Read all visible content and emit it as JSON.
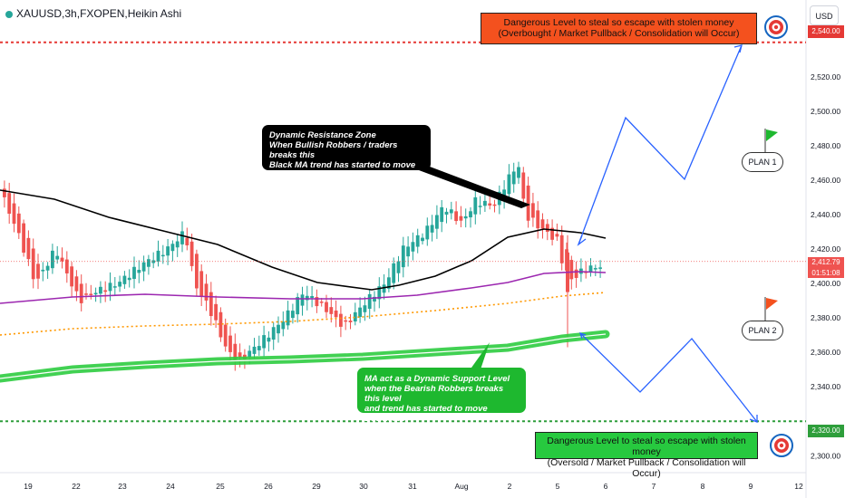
{
  "header": {
    "symbol": "XAUUSD",
    "timeframe": "3h",
    "exchange": "FXOPEN",
    "chart_style": "Heikin Ashi",
    "currency_button": "USD"
  },
  "annotations": {
    "top_box_line1": "Dangerous Level to steal so escape with stolen money",
    "top_box_line2": "(Overbought / Market Pullback / Consolidation will Occur)",
    "bottom_box_line1": "Dangerous Level to steal so escape with stolen money",
    "bottom_box_line2": "(Oversold / Market Pullback / Consolidation will Occur)",
    "resistance_line1": "Dynamic Resistance Zone",
    "resistance_line2": "When Bullish Robbers / traders breaks this",
    "resistance_line3": "Black MA trend has started to move Upside",
    "support_line1": "MA act as a Dynamic Support Level",
    "support_line2": "when the Bearish Robbers breaks this level",
    "support_line3": "and trend has started to move Downside",
    "plan1": "PLAN 1",
    "plan2": "PLAN 2"
  },
  "price_axis": {
    "levels": [
      "2,520.00",
      "2,500.00",
      "2,480.00",
      "2,460.00",
      "2,440.00",
      "2,420.00",
      "2,400.00",
      "2,380.00",
      "2,360.00",
      "2,340.00",
      "2,300.00"
    ],
    "label_top": "2,540.00",
    "label_bottom": "2,320.00",
    "label_current": "2,412.79",
    "label_countdown": "01:51:08"
  },
  "time_axis": [
    "19",
    "22",
    "23",
    "24",
    "25",
    "26",
    "29",
    "30",
    "31",
    "Aug",
    "2",
    "5",
    "6",
    "7",
    "8",
    "9",
    "12"
  ],
  "chart_data": {
    "type": "candlestick",
    "ylim": [
      2297,
      2553
    ],
    "current_price": 2412.79,
    "levels": {
      "upper_target": 2540,
      "lower_target": 2320,
      "current": 2412.79
    },
    "x_ticks": [
      "19",
      "22",
      "23",
      "24",
      "25",
      "26",
      "29",
      "30",
      "31",
      "Aug",
      "2",
      "5",
      "6",
      "7",
      "8",
      "9",
      "12"
    ],
    "colors": {
      "bull": "#26a69a",
      "bear": "#ef5350",
      "upper_level": "#e53935",
      "lower_level": "#2e9e3b",
      "black_ma": "#000000",
      "purple_ma": "#9c27b0",
      "orange_ma": "#ff9800",
      "green_ma": "#2ecc40",
      "projection": "#2962ff"
    }
  }
}
